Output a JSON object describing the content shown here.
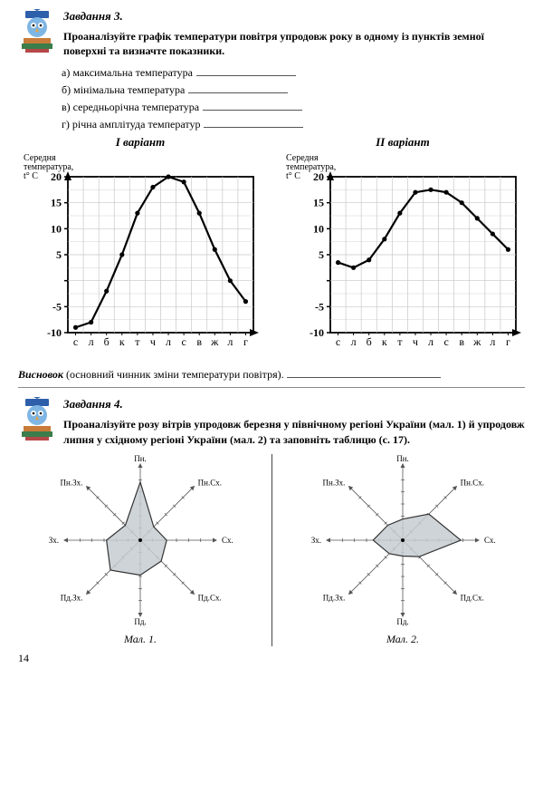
{
  "task3": {
    "title": "Завдання 3.",
    "prompt": "Проаналізуйте графік температури повітря упродовж року в одному із пунктів земної поверхні та визначте показники.",
    "opts": {
      "a": "а) максимальна температура",
      "b": "б) мінімальна  температура",
      "v": "в) середньорічна  температура",
      "g": "г) річна амплітуда температур"
    },
    "variant1_title": "І варіант",
    "variant2_title": "ІІ варіант",
    "axis_label": "Середня температура, t° С",
    "ylim": [
      -10,
      20
    ],
    "ytick_step": 5,
    "yticks": [
      "-10",
      "-5",
      "",
      "5",
      "10",
      "15",
      "20"
    ],
    "months": [
      "с",
      "л",
      "б",
      "к",
      "т",
      "ч",
      "л",
      "с",
      "в",
      "ж",
      "л",
      "г"
    ],
    "chart1_values": [
      -9,
      -8,
      -2,
      5,
      13,
      18,
      20,
      19,
      13,
      6,
      0,
      -4
    ],
    "chart2_values": [
      3.5,
      2.5,
      4,
      8,
      13,
      17,
      17.5,
      17,
      15,
      12,
      9,
      6
    ],
    "grid_color": "#c8c8c8",
    "axis_color": "#000000",
    "line_color": "#000000",
    "conclusion_label": "Висновок",
    "conclusion_text": "(основний чинник зміни температури повітря)."
  },
  "task4": {
    "title": "Завдання 4.",
    "prompt": "Проаналізуйте розу вітрів упродовж березня у північному регіоні України (мал. 1) й упродовж липня у східному регіоні України (мал. 2) та заповніть таблицю (с. 17).",
    "dirs": {
      "n": "Пн.",
      "ne": "Пн.Сх.",
      "e": "Сх.",
      "se": "Пд.Сх.",
      "s": "Пд.",
      "sw": "Пд.Зх.",
      "w": "Зх.",
      "nw": "Пн.Зх."
    },
    "rose1": {
      "n": 55,
      "ne": 18,
      "e": 25,
      "se": 28,
      "s": 33,
      "sw": 40,
      "w": 32,
      "nw": 20
    },
    "rose2": {
      "n": 20,
      "ne": 35,
      "e": 55,
      "se": 22,
      "s": 15,
      "sw": 18,
      "w": 28,
      "nw": 20
    },
    "fill_color": "#c5cdd1",
    "stroke_color": "#333333",
    "axis_color": "#555555",
    "mal1": "Мал. 1.",
    "mal2": "Мал. 2."
  },
  "page_number": "14"
}
